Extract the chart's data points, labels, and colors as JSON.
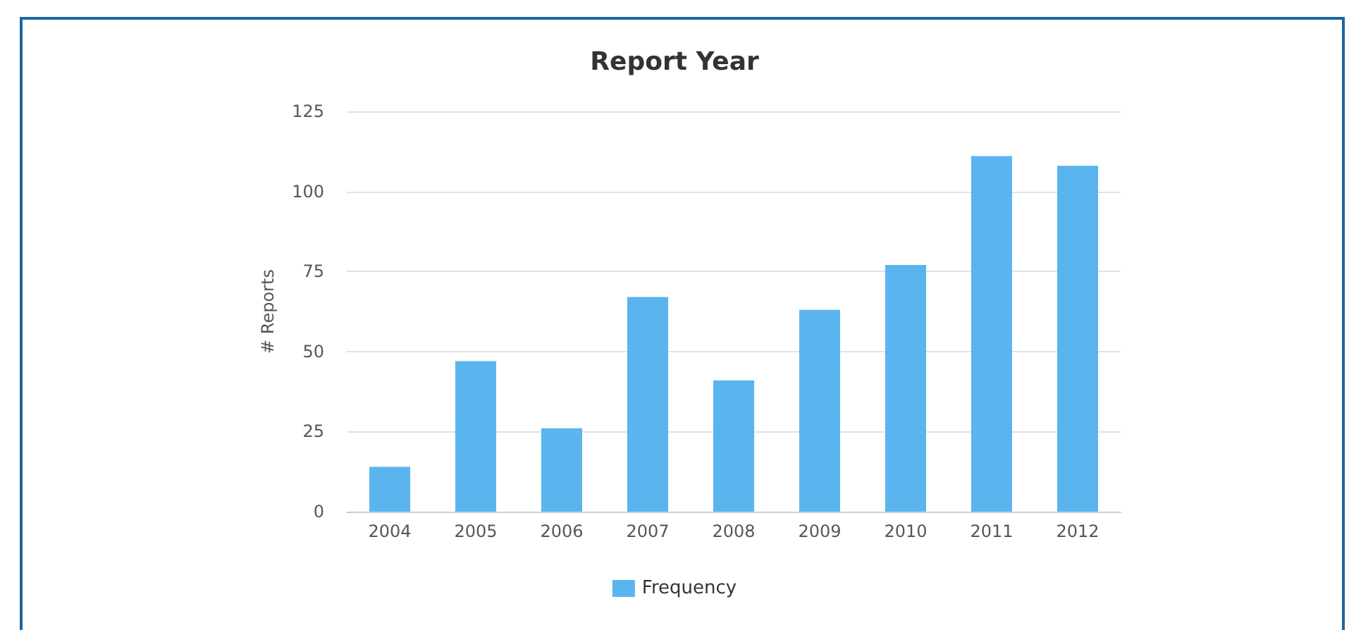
{
  "chart_data": {
    "type": "bar",
    "title": "Report Year",
    "ylabel": "# Reports",
    "categories": [
      "2004",
      "2005",
      "2006",
      "2007",
      "2008",
      "2009",
      "2010",
      "2011",
      "2012"
    ],
    "series": [
      {
        "name": "Frequency",
        "color": "#5ab4ee",
        "values": [
          14,
          47,
          26,
          67,
          41,
          63,
          77,
          111,
          108
        ]
      }
    ],
    "ylim": [
      0,
      125
    ],
    "yticks": [
      0,
      25,
      50,
      75,
      100,
      125
    ],
    "grid": "y",
    "legend": "bottom"
  }
}
